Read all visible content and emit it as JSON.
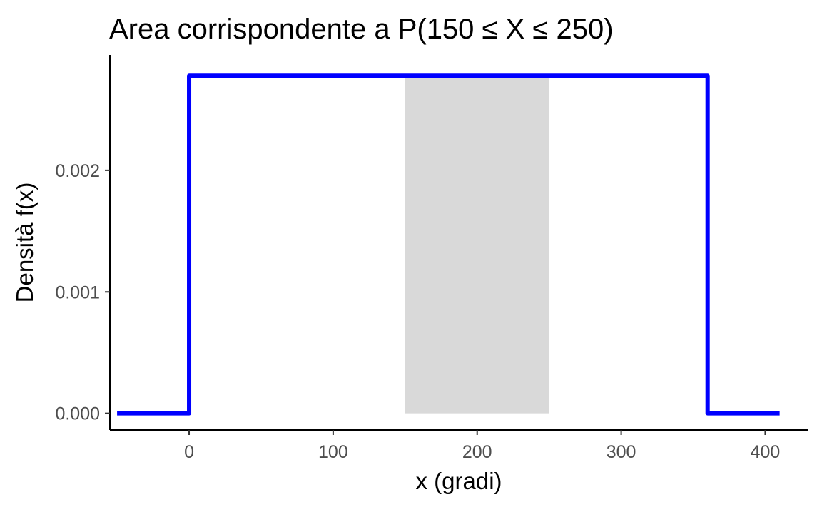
{
  "chart_data": {
    "type": "line",
    "title": "Area corrispondente a P(150 ≤ X ≤ 250)",
    "xlabel": "x (gradi)",
    "ylabel": "Densità f(x)",
    "xlim": [
      -55,
      430
    ],
    "ylim": [
      -0.000137,
      0.00295
    ],
    "x_ticks": [
      0,
      100,
      200,
      300,
      400
    ],
    "x_tick_labels": [
      "0",
      "100",
      "200",
      "300",
      "400"
    ],
    "y_ticks": [
      0,
      0.001,
      0.002
    ],
    "y_tick_labels": [
      "0.000",
      "0.001",
      "0.002"
    ],
    "grid": false,
    "legend": "none",
    "series": [
      {
        "color": "#0000ff",
        "x": [
          -50,
          0,
          0,
          360,
          360,
          410
        ],
        "y": [
          0,
          0,
          0.002778,
          0.002778,
          0,
          0
        ]
      }
    ],
    "shaded_region": {
      "x_from": 150,
      "x_to": 250,
      "y_from": 0,
      "y_to": 0.002778,
      "color": "#d9d9d9"
    }
  }
}
